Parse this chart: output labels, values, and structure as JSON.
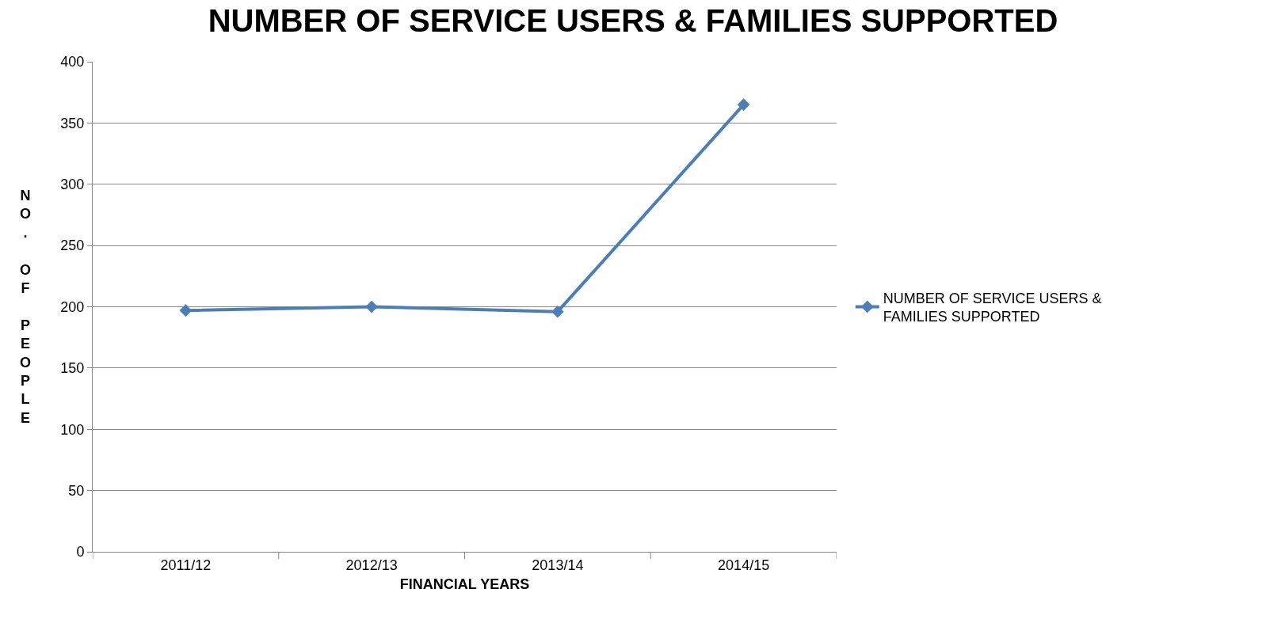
{
  "chart_data": {
    "type": "line",
    "title": "NUMBER OF SERVICE USERS & FAMILIES SUPPORTED",
    "xlabel": "FINANCIAL YEARS",
    "ylabel": "NO. OF PEOPLE",
    "categories": [
      "2011/12",
      "2012/13",
      "2013/14",
      "2014/15"
    ],
    "series": [
      {
        "name": "NUMBER OF SERVICE USERS & FAMILIES SUPPORTED",
        "color": "#4a7ebb",
        "values": [
          197,
          200,
          196,
          365
        ]
      }
    ],
    "ylim": [
      0,
      400
    ],
    "yticks": [
      0,
      50,
      100,
      150,
      200,
      250,
      300,
      350,
      400
    ],
    "grid": "y",
    "legend": "right",
    "marker": "diamond",
    "line_style": "solid"
  }
}
